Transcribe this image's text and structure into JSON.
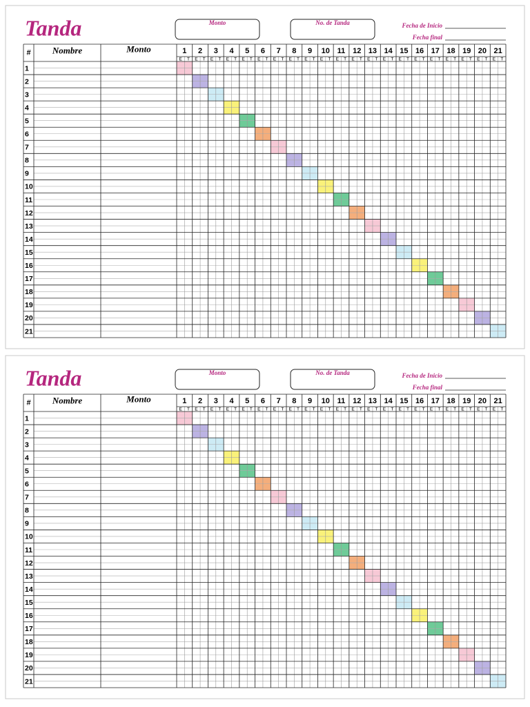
{
  "sheets": [
    {
      "title": "Tanda",
      "fields": {
        "amount": "Monto",
        "tanda_number": "No. de Tanda",
        "start_date": "Fecha de Inicio",
        "end_date": "Fecha final"
      },
      "table": {
        "headers": {
          "number": "#",
          "name": "Nombre",
          "amount": "Monto"
        },
        "columns": [
          {
            "number": 1,
            "sub": [
              "E",
              "T"
            ]
          },
          {
            "number": 2,
            "sub": [
              "E",
              "T"
            ]
          },
          {
            "number": 3,
            "sub": [
              "E",
              "T"
            ]
          },
          {
            "number": 4,
            "sub": [
              "E",
              "T"
            ]
          },
          {
            "number": 5,
            "sub": [
              "E",
              "T"
            ]
          },
          {
            "number": 6,
            "sub": [
              "E",
              "T"
            ]
          },
          {
            "number": 7,
            "sub": [
              "E",
              "T"
            ]
          },
          {
            "number": 8,
            "sub": [
              "E",
              "T"
            ]
          },
          {
            "number": 9,
            "sub": [
              "E",
              "T"
            ]
          },
          {
            "number": 10,
            "sub": [
              "E",
              "T"
            ]
          },
          {
            "number": 11,
            "sub": [
              "E",
              "T"
            ]
          },
          {
            "number": 12,
            "sub": [
              "E",
              "T"
            ]
          },
          {
            "number": 13,
            "sub": [
              "E",
              "T"
            ]
          },
          {
            "number": 14,
            "sub": [
              "E",
              "T"
            ]
          },
          {
            "number": 15,
            "sub": [
              "E",
              "T"
            ]
          },
          {
            "number": 16,
            "sub": [
              "E",
              "T"
            ]
          },
          {
            "number": 17,
            "sub": [
              "E",
              "T"
            ]
          },
          {
            "number": 18,
            "sub": [
              "E",
              "T"
            ]
          },
          {
            "number": 19,
            "sub": [
              "E",
              "T"
            ]
          },
          {
            "number": 20,
            "sub": [
              "E",
              "T"
            ]
          },
          {
            "number": 21,
            "sub": [
              "E",
              "T"
            ]
          }
        ],
        "rows": [
          1,
          2,
          3,
          4,
          5,
          6,
          7,
          8,
          9,
          10,
          11,
          12,
          13,
          14,
          15,
          16,
          17,
          18,
          19,
          20,
          21
        ]
      }
    },
    {
      "title": "Tanda",
      "fields": {
        "amount": "Monto",
        "tanda_number": "No. de Tanda",
        "start_date": "Fecha de Inicio",
        "end_date": "Fecha final"
      },
      "table": {
        "headers": {
          "number": "#",
          "name": "Nombre",
          "amount": "Monto"
        },
        "columns": [
          {
            "number": 1,
            "sub": [
              "E",
              "T"
            ]
          },
          {
            "number": 2,
            "sub": [
              "E",
              "T"
            ]
          },
          {
            "number": 3,
            "sub": [
              "E",
              "T"
            ]
          },
          {
            "number": 4,
            "sub": [
              "E",
              "T"
            ]
          },
          {
            "number": 5,
            "sub": [
              "E",
              "T"
            ]
          },
          {
            "number": 6,
            "sub": [
              "E",
              "T"
            ]
          },
          {
            "number": 7,
            "sub": [
              "E",
              "T"
            ]
          },
          {
            "number": 8,
            "sub": [
              "E",
              "T"
            ]
          },
          {
            "number": 9,
            "sub": [
              "E",
              "T"
            ]
          },
          {
            "number": 10,
            "sub": [
              "E",
              "T"
            ]
          },
          {
            "number": 11,
            "sub": [
              "E",
              "T"
            ]
          },
          {
            "number": 12,
            "sub": [
              "E",
              "T"
            ]
          },
          {
            "number": 13,
            "sub": [
              "E",
              "T"
            ]
          },
          {
            "number": 14,
            "sub": [
              "E",
              "T"
            ]
          },
          {
            "number": 15,
            "sub": [
              "E",
              "T"
            ]
          },
          {
            "number": 16,
            "sub": [
              "E",
              "T"
            ]
          },
          {
            "number": 17,
            "sub": [
              "E",
              "T"
            ]
          },
          {
            "number": 18,
            "sub": [
              "E",
              "T"
            ]
          },
          {
            "number": 19,
            "sub": [
              "E",
              "T"
            ]
          },
          {
            "number": 20,
            "sub": [
              "E",
              "T"
            ]
          },
          {
            "number": 21,
            "sub": [
              "E",
              "T"
            ]
          }
        ],
        "rows": [
          1,
          2,
          3,
          4,
          5,
          6,
          7,
          8,
          9,
          10,
          11,
          12,
          13,
          14,
          15,
          16,
          17,
          18,
          19,
          20,
          21
        ]
      }
    }
  ]
}
